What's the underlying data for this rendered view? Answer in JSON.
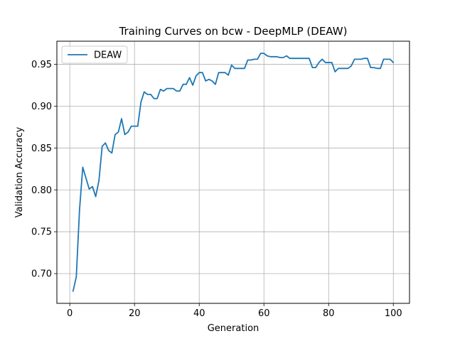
{
  "chart_data": {
    "type": "line",
    "title": "Training Curves on bcw - DeepMLP (DEAW)",
    "xlabel": "Generation",
    "ylabel": "Validation Accuracy",
    "xlim": [
      -4,
      105
    ],
    "ylim": [
      0.6645,
      0.9775
    ],
    "xticks": [
      0,
      20,
      40,
      60,
      80,
      100
    ],
    "yticks": [
      0.7,
      0.75,
      0.8,
      0.85,
      0.9,
      0.95
    ],
    "xtick_labels": [
      "0",
      "20",
      "40",
      "60",
      "80",
      "100"
    ],
    "ytick_labels": [
      "0.70",
      "0.75",
      "0.80",
      "0.85",
      "0.90",
      "0.95"
    ],
    "grid": true,
    "legend_position": "top-left",
    "series": [
      {
        "name": "DEAW",
        "color": "#1f77b4",
        "x": [
          1,
          2,
          3,
          4,
          5,
          6,
          7,
          8,
          9,
          10,
          11,
          12,
          13,
          14,
          15,
          16,
          17,
          18,
          19,
          20,
          21,
          22,
          23,
          24,
          25,
          26,
          27,
          28,
          29,
          30,
          31,
          32,
          33,
          34,
          35,
          36,
          37,
          38,
          39,
          40,
          41,
          42,
          43,
          44,
          45,
          46,
          47,
          48,
          49,
          50,
          51,
          52,
          53,
          54,
          55,
          56,
          57,
          58,
          59,
          60,
          61,
          62,
          63,
          64,
          65,
          66,
          67,
          68,
          69,
          70,
          71,
          72,
          73,
          74,
          75,
          76,
          77,
          78,
          79,
          80,
          81,
          82,
          83,
          84,
          85,
          86,
          87,
          88,
          89,
          90,
          91,
          92,
          93,
          94,
          95,
          96,
          97,
          98,
          99,
          100
        ],
        "values": [
          0.679,
          0.696,
          0.776,
          0.827,
          0.814,
          0.801,
          0.804,
          0.792,
          0.811,
          0.852,
          0.856,
          0.847,
          0.844,
          0.866,
          0.869,
          0.885,
          0.866,
          0.869,
          0.876,
          0.876,
          0.876,
          0.905,
          0.917,
          0.914,
          0.914,
          0.909,
          0.909,
          0.92,
          0.918,
          0.921,
          0.921,
          0.921,
          0.918,
          0.918,
          0.926,
          0.926,
          0.934,
          0.925,
          0.936,
          0.94,
          0.94,
          0.93,
          0.932,
          0.93,
          0.926,
          0.94,
          0.94,
          0.94,
          0.937,
          0.949,
          0.945,
          0.945,
          0.945,
          0.945,
          0.955,
          0.955,
          0.956,
          0.956,
          0.963,
          0.963,
          0.96,
          0.959,
          0.959,
          0.959,
          0.958,
          0.958,
          0.96,
          0.957,
          0.957,
          0.957,
          0.957,
          0.957,
          0.957,
          0.957,
          0.946,
          0.946,
          0.952,
          0.956,
          0.952,
          0.952,
          0.952,
          0.941,
          0.945,
          0.945,
          0.945,
          0.945,
          0.948,
          0.956,
          0.956,
          0.956,
          0.957,
          0.957,
          0.946,
          0.946,
          0.945,
          0.945,
          0.956,
          0.956,
          0.956,
          0.952
        ]
      }
    ]
  }
}
